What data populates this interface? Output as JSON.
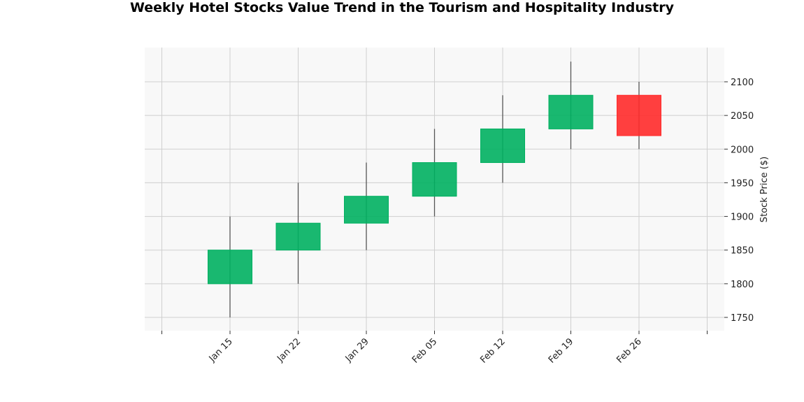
{
  "chart_data": {
    "type": "candlestick",
    "title": "Weekly Hotel Stocks Value Trend in the Tourism and Hospitality Industry",
    "xlabel": "",
    "ylabel": "Stock Price ($)",
    "ylim": [
      1730,
      2150
    ],
    "yticks": [
      1750,
      1800,
      1850,
      1900,
      1950,
      2000,
      2050,
      2100
    ],
    "y_axis_side": "right",
    "grid": true,
    "background": "#f8f8f8",
    "up_color": "#00b060",
    "down_color": "#ff2a2a",
    "wick_color": "#555555",
    "x": [
      "Jan 15",
      "Jan 22",
      "Jan 29",
      "Feb 05",
      "Feb 12",
      "Feb 19",
      "Feb 26"
    ],
    "open": [
      1800,
      1850,
      1890,
      1930,
      1980,
      2030,
      2080
    ],
    "high": [
      1900,
      1950,
      1980,
      2030,
      2080,
      2130,
      2100
    ],
    "low": [
      1750,
      1800,
      1850,
      1900,
      1950,
      2000,
      2000
    ],
    "close": [
      1850,
      1890,
      1930,
      1980,
      2030,
      2080,
      2020
    ]
  }
}
